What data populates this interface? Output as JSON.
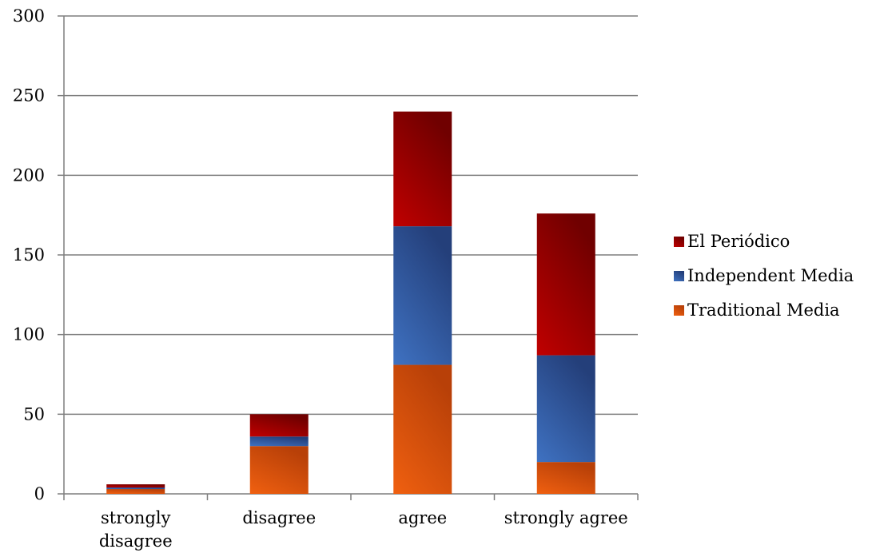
{
  "chart_data": {
    "type": "bar",
    "stacked": true,
    "categories": [
      "strongly disagree",
      "disagree",
      "agree",
      "strongly agree"
    ],
    "category_lines": [
      [
        "strongly",
        "disagree"
      ],
      [
        "disagree"
      ],
      [
        "agree"
      ],
      [
        "strongly agree"
      ]
    ],
    "series": [
      {
        "name": "Traditional Media",
        "values": [
          3,
          30,
          81,
          20
        ],
        "color": "#f06010",
        "color_dark": "#b84008"
      },
      {
        "name": "Independent Media",
        "values": [
          1,
          6,
          87,
          67
        ],
        "color": "#3f72c2",
        "color_dark": "#243f7a"
      },
      {
        "name": "El Periódico",
        "values": [
          2,
          14,
          72,
          89
        ],
        "color": "#c00000",
        "color_dark": "#700000"
      }
    ],
    "ylim": [
      0,
      300
    ],
    "yticks": [
      0,
      50,
      100,
      150,
      200,
      250,
      300
    ],
    "grid": true,
    "legend_position": "right",
    "title": "",
    "xlabel": "",
    "ylabel": ""
  }
}
